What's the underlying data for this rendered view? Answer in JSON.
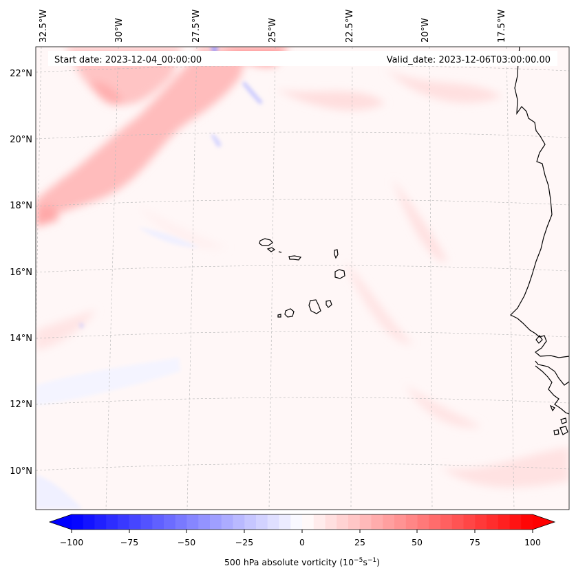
{
  "header": {
    "start_date": "Start date: 2023-12-04_00:00:00",
    "valid_date": "Valid_date: 2023-12-06T03:00:00.00"
  },
  "lon_labels": [
    "32.5°W",
    "30°W",
    "27.5°W",
    "25°W",
    "22.5°W",
    "20°W",
    "17.5°W"
  ],
  "lat_labels": [
    "22°N",
    "20°N",
    "18°N",
    "16°N",
    "14°N",
    "12°N",
    "10°N"
  ],
  "colorbar": {
    "ticks": [
      "−100",
      "−75",
      "−50",
      "−25",
      "0",
      "25",
      "50",
      "75",
      "100"
    ],
    "min": -100,
    "max": 100,
    "label_main": "500 hPa absolute vorticity (10",
    "label_exp1": "−5",
    "label_mid": "s",
    "label_exp2": "−1",
    "label_end": ")",
    "negative_color": "#0000ff",
    "positive_color": "#ff0000"
  },
  "colors": {
    "coastline": "#000000",
    "grid": "#bbbbbb"
  }
}
